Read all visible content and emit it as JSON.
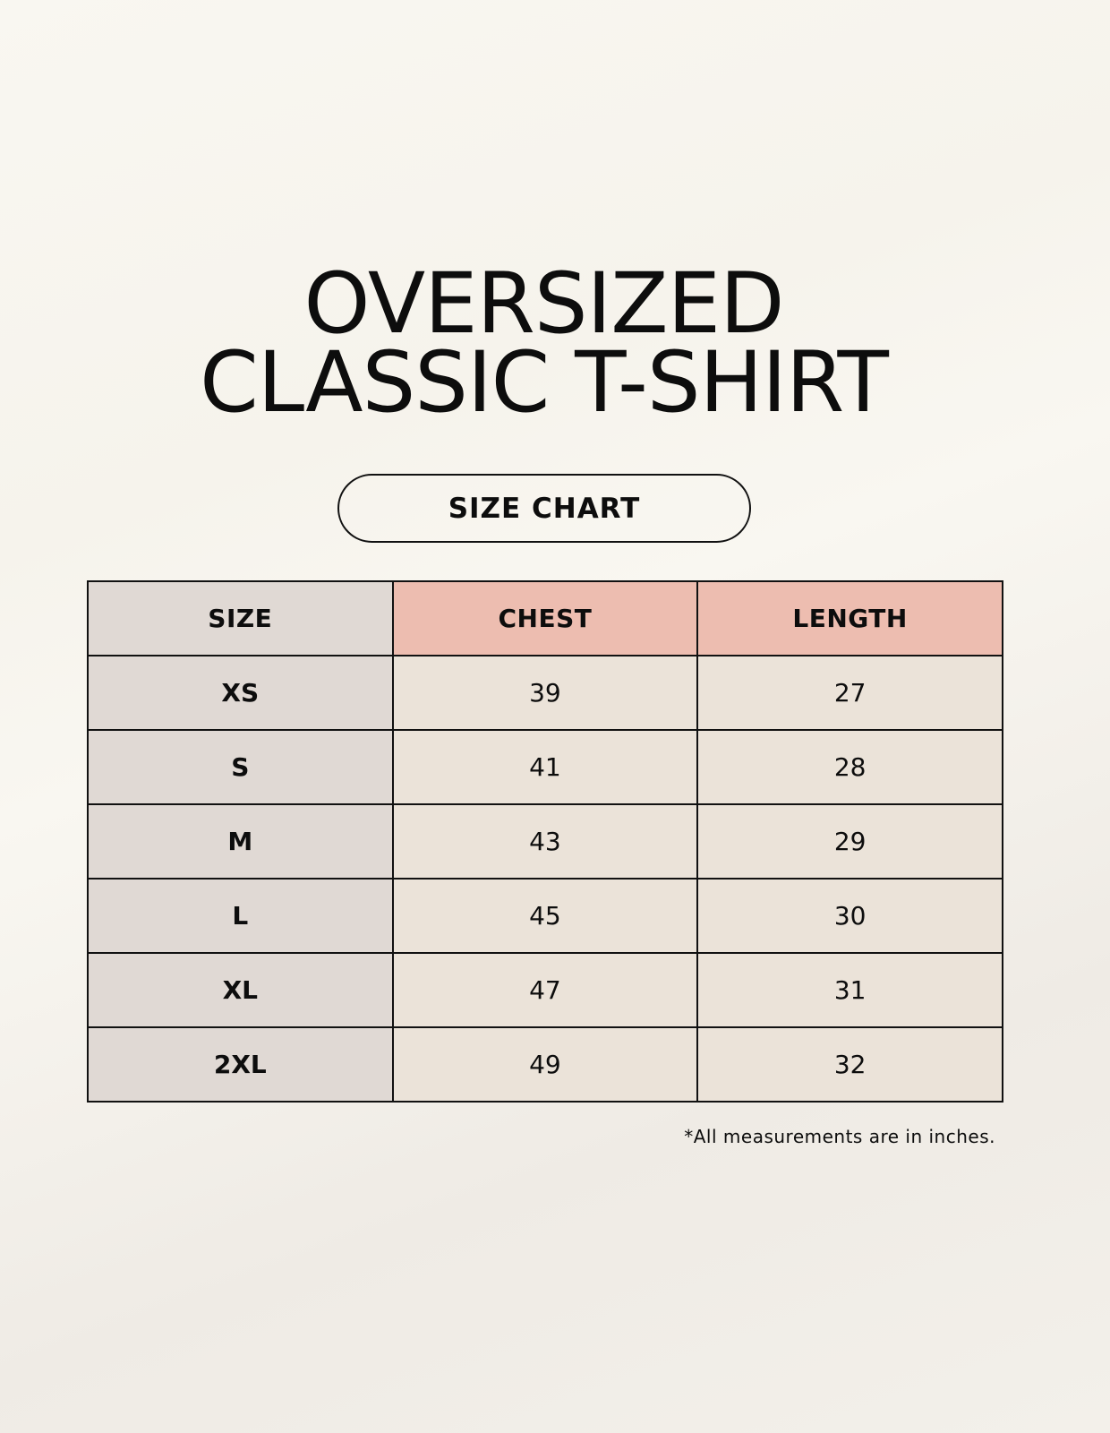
{
  "title": {
    "line1": "OVERSIZED",
    "line2": "CLASSIC T-SHIRT"
  },
  "badge": "SIZE CHART",
  "table": {
    "headers": [
      "SIZE",
      "CHEST",
      "LENGTH"
    ],
    "rows": [
      [
        "XS",
        "39",
        "27"
      ],
      [
        "S",
        "41",
        "28"
      ],
      [
        "M",
        "43",
        "29"
      ],
      [
        "L",
        "45",
        "30"
      ],
      [
        "XL",
        "47",
        "31"
      ],
      [
        "2XL",
        "49",
        "32"
      ]
    ]
  },
  "footnote": "*All measurements are in inches.",
  "colors": {
    "header_accent": "#edbdb0",
    "size_column": "#e0d9d4",
    "cells": "#ebe3d9",
    "background": "#f8f6f0"
  }
}
